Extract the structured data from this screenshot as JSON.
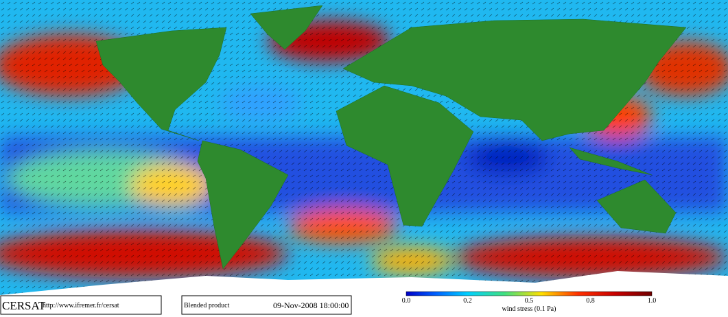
{
  "logo": {
    "name": "CERSAT",
    "url": "http://www.ifremer.fr/cersat"
  },
  "product": "Blended product",
  "timestamp": "09-Nov-2008 18:00:00",
  "colorbar": {
    "ticks": [
      "0.0",
      "0.2",
      "0.5",
      "0.8",
      "1.0"
    ],
    "label": "wind stress (0.1 Pa)"
  }
}
